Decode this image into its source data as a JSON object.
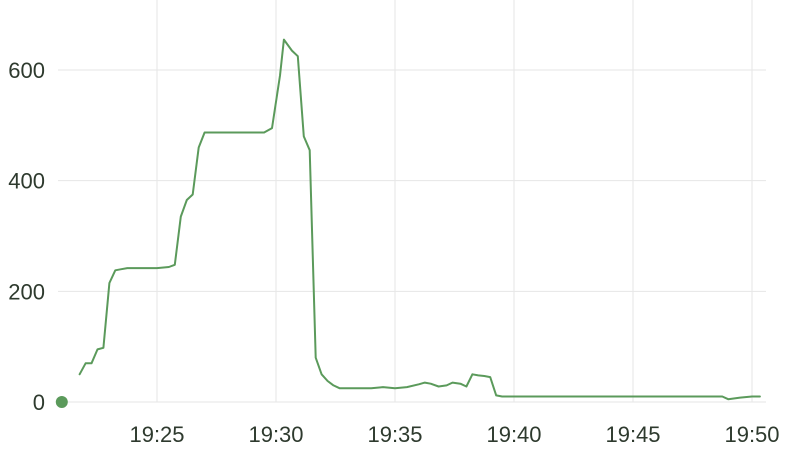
{
  "chart_data": {
    "type": "line",
    "title": "",
    "xlabel": "",
    "ylabel": "",
    "x_ticks": [
      "19:25",
      "19:30",
      "19:35",
      "19:40",
      "19:45",
      "19:50"
    ],
    "y_ticks": [
      "0",
      "200",
      "400",
      "600"
    ],
    "ylim": [
      0,
      700
    ],
    "xlim": [
      "19:21:00",
      "19:50:30"
    ],
    "grid": true,
    "legend": "none",
    "colors": {
      "line": "#5b9a5b",
      "marker": "#5b9a5b"
    },
    "series": [
      {
        "x": [
          "19:21:45",
          "19:22:00",
          "19:22:15",
          "19:22:30",
          "19:22:45",
          "19:23:00",
          "19:23:15",
          "19:23:30",
          "19:23:45",
          "19:24:00",
          "19:24:30",
          "19:25:00",
          "19:25:30",
          "19:25:45",
          "19:26:00",
          "19:26:15",
          "19:26:30",
          "19:26:45",
          "19:27:00",
          "19:27:30",
          "19:28:00",
          "19:28:30",
          "19:29:00",
          "19:29:30",
          "19:29:50",
          "19:30:10",
          "19:30:20",
          "19:30:40",
          "19:30:55",
          "19:31:10",
          "19:31:25",
          "19:31:40",
          "19:31:55",
          "19:32:10",
          "19:32:25",
          "19:32:40",
          "19:32:55",
          "19:33:10",
          "19:33:30",
          "19:34:00",
          "19:34:30",
          "19:35:00",
          "19:35:30",
          "19:36:00",
          "19:36:15",
          "19:36:30",
          "19:36:50",
          "19:37:10",
          "19:37:25",
          "19:37:45",
          "19:38:00",
          "19:38:15",
          "19:38:30",
          "19:38:45",
          "19:39:00",
          "19:39:15",
          "19:39:30",
          "19:39:45",
          "19:40:00",
          "19:42:00",
          "19:44:00",
          "19:46:00",
          "19:48:00",
          "19:48:45",
          "19:49:00",
          "19:49:30",
          "19:50:00",
          "19:50:20"
        ],
        "values": [
          50,
          70,
          70,
          95,
          98,
          215,
          238,
          240,
          242,
          242,
          242,
          242,
          244,
          248,
          335,
          365,
          375,
          460,
          487,
          487,
          487,
          487,
          487,
          487,
          495,
          590,
          655,
          635,
          625,
          480,
          455,
          80,
          50,
          38,
          30,
          25,
          25,
          25,
          25,
          25,
          27,
          25,
          27,
          32,
          35,
          33,
          28,
          30,
          35,
          33,
          28,
          50,
          48,
          47,
          45,
          12,
          10,
          10,
          10,
          10,
          10,
          10,
          10,
          10,
          5,
          8,
          10,
          10
        ]
      }
    ],
    "markers": [
      {
        "x": "19:21:00",
        "y": 0
      }
    ]
  }
}
